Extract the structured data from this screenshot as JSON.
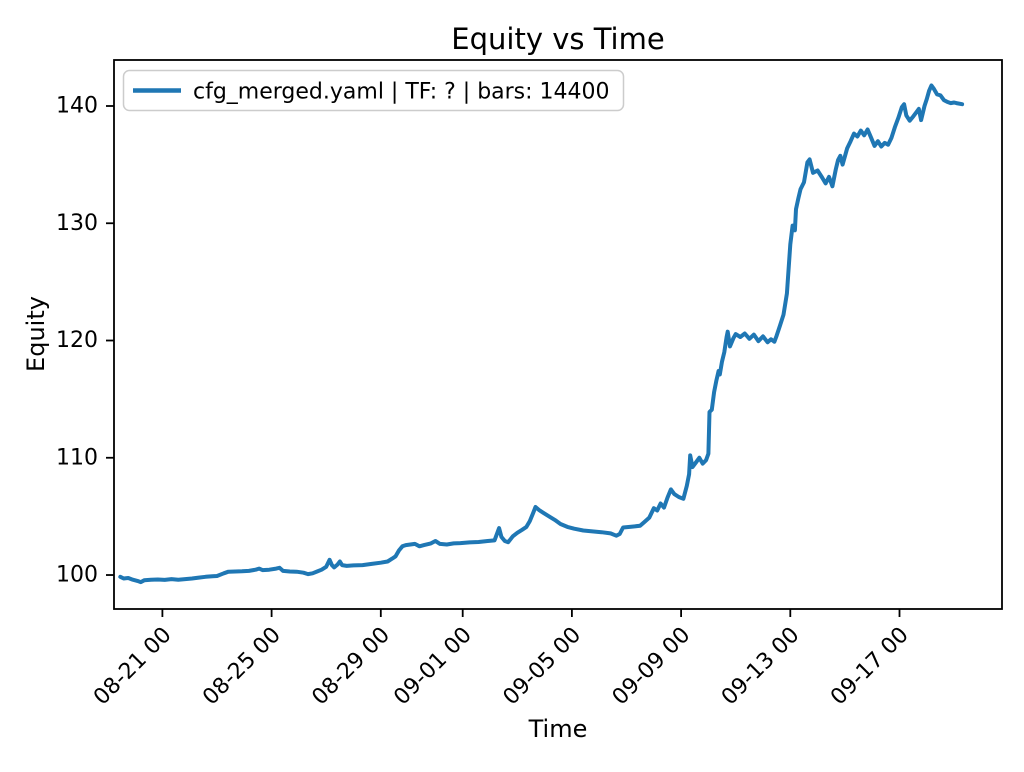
{
  "chart_data": {
    "type": "line",
    "title": "Equity vs Time",
    "xlabel": "Time",
    "ylabel": "Equity",
    "grid": false,
    "line_color": "#1f77b4",
    "ylim": [
      97.1,
      143.9
    ],
    "y_ticks": [
      100,
      110,
      120,
      130,
      140
    ],
    "x_ticks": [
      {
        "label": "08-21 00",
        "day": 0
      },
      {
        "label": "08-25 00",
        "day": 4
      },
      {
        "label": "08-29 00",
        "day": 8
      },
      {
        "label": "09-01 00",
        "day": 11
      },
      {
        "label": "09-05 00",
        "day": 15
      },
      {
        "label": "09-09 00",
        "day": 19
      },
      {
        "label": "09-13 00",
        "day": 23
      },
      {
        "label": "09-17 00",
        "day": 27
      }
    ],
    "legend": {
      "position": "upper-left",
      "entries": [
        {
          "label": "cfg_merged.yaml | TF: ? | bars: 14400",
          "color": "#1f77b4"
        }
      ]
    },
    "series": [
      {
        "name": "cfg_merged.yaml | TF: ? | bars: 14400",
        "color": "#1f77b4",
        "points": [
          [
            "08-19 11",
            99.85
          ],
          [
            "08-19 14",
            99.7
          ],
          [
            "08-19 18",
            99.75
          ],
          [
            "08-19 22",
            99.6
          ],
          [
            "08-20 02",
            99.5
          ],
          [
            "08-20 05",
            99.4
          ],
          [
            "08-20 08",
            99.55
          ],
          [
            "08-20 14",
            99.6
          ],
          [
            "08-20 20",
            99.62
          ],
          [
            "08-21 02",
            99.58
          ],
          [
            "08-21 08",
            99.65
          ],
          [
            "08-21 14",
            99.6
          ],
          [
            "08-21 20",
            99.65
          ],
          [
            "08-22 02",
            99.7
          ],
          [
            "08-22 08",
            99.78
          ],
          [
            "08-22 14",
            99.85
          ],
          [
            "08-22 20",
            99.9
          ],
          [
            "08-23 00",
            99.92
          ],
          [
            "08-23 06",
            100.15
          ],
          [
            "08-23 10",
            100.28
          ],
          [
            "08-23 16",
            100.3
          ],
          [
            "08-23 22",
            100.32
          ],
          [
            "08-24 04",
            100.35
          ],
          [
            "08-24 10",
            100.45
          ],
          [
            "08-24 13",
            100.55
          ],
          [
            "08-24 16",
            100.42
          ],
          [
            "08-24 22",
            100.45
          ],
          [
            "08-25 04",
            100.55
          ],
          [
            "08-25 07",
            100.62
          ],
          [
            "08-25 10",
            100.35
          ],
          [
            "08-25 16",
            100.3
          ],
          [
            "08-25 22",
            100.28
          ],
          [
            "08-26 04",
            100.2
          ],
          [
            "08-26 08",
            100.08
          ],
          [
            "08-26 12",
            100.15
          ],
          [
            "08-26 16",
            100.3
          ],
          [
            "08-26 20",
            100.45
          ],
          [
            "08-27 00",
            100.7
          ],
          [
            "08-27 03",
            101.3
          ],
          [
            "08-27 05",
            100.85
          ],
          [
            "08-27 07",
            100.65
          ],
          [
            "08-27 10",
            100.9
          ],
          [
            "08-27 12",
            101.15
          ],
          [
            "08-27 14",
            100.85
          ],
          [
            "08-27 18",
            100.78
          ],
          [
            "08-28 00",
            100.82
          ],
          [
            "08-28 08",
            100.85
          ],
          [
            "08-28 16",
            100.95
          ],
          [
            "08-29 00",
            101.05
          ],
          [
            "08-29 06",
            101.15
          ],
          [
            "08-29 10",
            101.4
          ],
          [
            "08-29 13",
            101.6
          ],
          [
            "08-29 16",
            102.1
          ],
          [
            "08-29 19",
            102.45
          ],
          [
            "08-29 22",
            102.55
          ],
          [
            "08-30 02",
            102.6
          ],
          [
            "08-30 06",
            102.65
          ],
          [
            "08-30 10",
            102.45
          ],
          [
            "08-30 14",
            102.55
          ],
          [
            "08-30 20",
            102.7
          ],
          [
            "08-31 00",
            102.9
          ],
          [
            "08-31 04",
            102.65
          ],
          [
            "08-31 10",
            102.6
          ],
          [
            "08-31 16",
            102.7
          ],
          [
            "08-31 22",
            102.72
          ],
          [
            "09-01 06",
            102.78
          ],
          [
            "09-01 14",
            102.82
          ],
          [
            "09-01 22",
            102.9
          ],
          [
            "09-02 04",
            102.95
          ],
          [
            "09-02 08",
            104.0
          ],
          [
            "09-02 10",
            103.25
          ],
          [
            "09-02 13",
            102.9
          ],
          [
            "09-02 16",
            102.8
          ],
          [
            "09-02 20",
            103.3
          ],
          [
            "09-03 00",
            103.6
          ],
          [
            "09-03 04",
            103.85
          ],
          [
            "09-03 08",
            104.1
          ],
          [
            "09-03 11",
            104.6
          ],
          [
            "09-03 14",
            105.3
          ],
          [
            "09-03 16",
            105.8
          ],
          [
            "09-03 19",
            105.55
          ],
          [
            "09-03 23",
            105.3
          ],
          [
            "09-04 04",
            105.0
          ],
          [
            "09-04 09",
            104.7
          ],
          [
            "09-04 14",
            104.35
          ],
          [
            "09-04 20",
            104.1
          ],
          [
            "09-05 02",
            103.95
          ],
          [
            "09-05 10",
            103.8
          ],
          [
            "09-05 18",
            103.72
          ],
          [
            "09-06 02",
            103.65
          ],
          [
            "09-06 10",
            103.55
          ],
          [
            "09-06 15",
            103.35
          ],
          [
            "09-06 18",
            103.5
          ],
          [
            "09-06 21",
            104.05
          ],
          [
            "09-07 04",
            104.12
          ],
          [
            "09-07 12",
            104.2
          ],
          [
            "09-07 16",
            104.55
          ],
          [
            "09-07 20",
            104.9
          ],
          [
            "09-08 00",
            105.7
          ],
          [
            "09-08 03",
            105.5
          ],
          [
            "09-08 06",
            106.1
          ],
          [
            "09-08 09",
            105.75
          ],
          [
            "09-08 12",
            106.6
          ],
          [
            "09-08 15",
            107.3
          ],
          [
            "09-08 18",
            106.9
          ],
          [
            "09-08 22",
            106.65
          ],
          [
            "09-09 02",
            106.5
          ],
          [
            "09-09 05",
            107.6
          ],
          [
            "09-09 07",
            108.6
          ],
          [
            "09-09 08",
            110.2
          ],
          [
            "09-09 10",
            109.2
          ],
          [
            "09-09 13",
            109.6
          ],
          [
            "09-09 16",
            110.0
          ],
          [
            "09-09 19",
            109.5
          ],
          [
            "09-09 22",
            109.8
          ],
          [
            "09-10 00",
            110.35
          ],
          [
            "09-10 01",
            113.9
          ],
          [
            "09-10 03",
            114.1
          ],
          [
            "09-10 05",
            115.6
          ],
          [
            "09-10 07",
            116.6
          ],
          [
            "09-10 09",
            117.4
          ],
          [
            "09-10 10",
            117.1
          ],
          [
            "09-10 12",
            118.2
          ],
          [
            "09-10 14",
            119.0
          ],
          [
            "09-10 16",
            120.3
          ],
          [
            "09-10 17",
            120.75
          ],
          [
            "09-10 19",
            119.5
          ],
          [
            "09-10 22",
            120.2
          ],
          [
            "09-11 00",
            120.55
          ],
          [
            "09-11 04",
            120.3
          ],
          [
            "09-11 08",
            120.6
          ],
          [
            "09-11 12",
            120.15
          ],
          [
            "09-11 16",
            120.5
          ],
          [
            "09-11 20",
            119.95
          ],
          [
            "09-12 00",
            120.35
          ],
          [
            "09-12 04",
            119.85
          ],
          [
            "09-12 07",
            120.1
          ],
          [
            "09-12 10",
            119.9
          ],
          [
            "09-12 12",
            120.4
          ],
          [
            "09-12 15",
            121.3
          ],
          [
            "09-12 18",
            122.2
          ],
          [
            "09-12 21",
            124.0
          ],
          [
            "09-13 00",
            128.2
          ],
          [
            "09-13 02",
            129.8
          ],
          [
            "09-13 04",
            129.4
          ],
          [
            "09-13 05",
            131.2
          ],
          [
            "09-13 07",
            132.1
          ],
          [
            "09-13 09",
            132.9
          ],
          [
            "09-13 12",
            133.5
          ],
          [
            "09-13 15",
            135.2
          ],
          [
            "09-13 17",
            135.45
          ],
          [
            "09-13 20",
            134.3
          ],
          [
            "09-14 00",
            134.5
          ],
          [
            "09-14 04",
            133.9
          ],
          [
            "09-14 07",
            133.4
          ],
          [
            "09-14 10",
            133.95
          ],
          [
            "09-14 13",
            133.15
          ],
          [
            "09-14 16",
            134.6
          ],
          [
            "09-14 18",
            135.4
          ],
          [
            "09-14 20",
            135.75
          ],
          [
            "09-14 22",
            135.0
          ],
          [
            "09-15 02",
            136.4
          ],
          [
            "09-15 05",
            137.0
          ],
          [
            "09-15 08",
            137.65
          ],
          [
            "09-15 11",
            137.4
          ],
          [
            "09-15 14",
            137.9
          ],
          [
            "09-15 17",
            137.5
          ],
          [
            "09-15 20",
            138.0
          ],
          [
            "09-15 23",
            137.3
          ],
          [
            "09-16 02",
            136.6
          ],
          [
            "09-16 05",
            137.0
          ],
          [
            "09-16 08",
            136.55
          ],
          [
            "09-16 11",
            136.85
          ],
          [
            "09-16 14",
            136.7
          ],
          [
            "09-16 17",
            137.3
          ],
          [
            "09-16 20",
            138.2
          ],
          [
            "09-16 23",
            139.0
          ],
          [
            "09-17 02",
            139.9
          ],
          [
            "09-17 04",
            140.15
          ],
          [
            "09-17 06",
            139.2
          ],
          [
            "09-17 09",
            138.75
          ],
          [
            "09-17 12",
            139.1
          ],
          [
            "09-17 15",
            139.5
          ],
          [
            "09-17 17",
            139.75
          ],
          [
            "09-17 19",
            138.8
          ],
          [
            "09-17 22",
            140.0
          ],
          [
            "09-18 00",
            140.6
          ],
          [
            "09-18 02",
            141.3
          ],
          [
            "09-18 04",
            141.75
          ],
          [
            "09-18 06",
            141.5
          ],
          [
            "09-18 09",
            141.0
          ],
          [
            "09-18 12",
            140.9
          ],
          [
            "09-18 15",
            140.5
          ],
          [
            "09-18 18",
            140.35
          ],
          [
            "09-18 21",
            140.25
          ],
          [
            "09-19 00",
            140.3
          ],
          [
            "09-19 02",
            140.25
          ],
          [
            "09-19 07",
            140.15
          ]
        ]
      }
    ]
  }
}
